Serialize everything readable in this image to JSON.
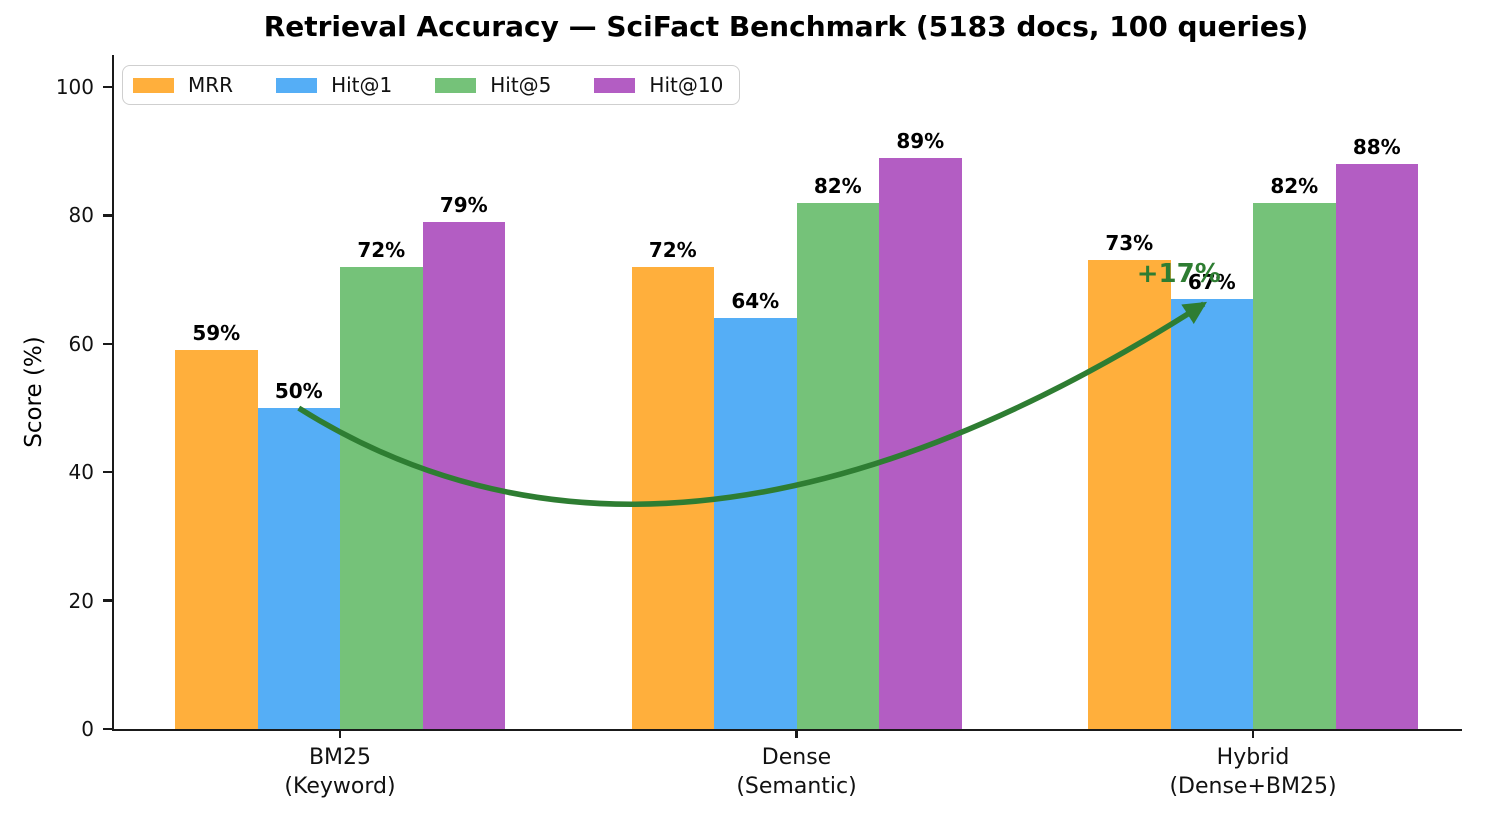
{
  "chart_data": {
    "type": "bar",
    "title": "Retrieval Accuracy — SciFact Benchmark (5183 docs, 100 queries)",
    "xlabel": "",
    "ylabel": "Score (%)",
    "ylim": [
      0,
      105
    ],
    "yticks": [
      0,
      20,
      40,
      60,
      80,
      100
    ],
    "grid": false,
    "legend_position": "upper-left",
    "categories": [
      {
        "label": "BM25",
        "sublabel": "(Keyword)"
      },
      {
        "label": "Dense",
        "sublabel": "(Semantic)"
      },
      {
        "label": "Hybrid",
        "sublabel": "(Dense+BM25)"
      }
    ],
    "series": [
      {
        "name": "MRR",
        "color": "#FFAF3C",
        "values": [
          59,
          72,
          73
        ],
        "labels": [
          "59%",
          "72%",
          "73%"
        ]
      },
      {
        "name": "Hit@1",
        "color": "#55AEF6",
        "values": [
          50,
          64,
          67
        ],
        "labels": [
          "50%",
          "64%",
          "67%"
        ]
      },
      {
        "name": "Hit@5",
        "color": "#75C279",
        "values": [
          72,
          82,
          82
        ],
        "labels": [
          "72%",
          "82%",
          "82%"
        ]
      },
      {
        "name": "Hit@10",
        "color": "#B35DC3",
        "values": [
          79,
          89,
          88
        ],
        "labels": [
          "79%",
          "89%",
          "88%"
        ]
      }
    ],
    "annotation": {
      "label": "+17%",
      "color": "#2E7D32",
      "from": {
        "category": "BM25 (Keyword)",
        "category_index": 0,
        "series": "Hit@1",
        "series_index": 1,
        "value": 50
      },
      "to": {
        "category": "Hybrid (Dense+BM25)",
        "category_index": 2,
        "series": "Hit@1",
        "series_index": 1,
        "value": 67
      }
    },
    "axis_color": "#1a1a1a",
    "background_color": "#ffffff"
  }
}
